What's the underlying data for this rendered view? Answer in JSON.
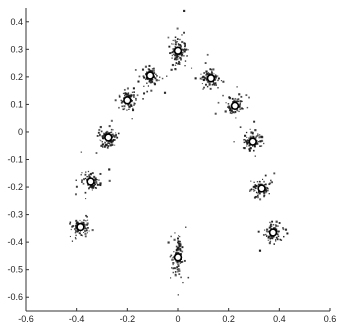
{
  "chart_data": {
    "type": "scatter",
    "title": "",
    "xlabel": "",
    "ylabel": "",
    "xlim": [
      -0.6,
      0.6
    ],
    "ylim": [
      -0.65,
      0.45
    ],
    "grid": false,
    "x_ticks": [
      "-0.6",
      "-0.4",
      "-0.2",
      "0",
      "0.2",
      "0.4",
      "0.6"
    ],
    "x_tick_values": [
      -0.6,
      -0.4,
      -0.2,
      0,
      0.2,
      0.4,
      0.6
    ],
    "y_ticks": [
      "0.4",
      "0.3",
      "0.2",
      "0.1",
      "0",
      "-0.1",
      "-0.2",
      "-0.3",
      "-0.4",
      "-0.5",
      "-0.6"
    ],
    "y_tick_values": [
      0.4,
      0.3,
      0.2,
      0.1,
      0,
      -0.1,
      -0.2,
      -0.3,
      -0.4,
      -0.5,
      -0.6
    ],
    "series": [
      {
        "marker": "white-circle",
        "points": [
          [
            0.0,
            0.295
          ],
          [
            0.13,
            0.195
          ],
          [
            0.225,
            0.095
          ],
          [
            0.295,
            -0.035
          ],
          [
            0.33,
            -0.205
          ],
          [
            0.375,
            -0.365
          ],
          [
            -0.11,
            0.205
          ],
          [
            -0.2,
            0.115
          ],
          [
            -0.275,
            -0.02
          ],
          [
            -0.345,
            -0.18
          ],
          [
            -0.385,
            -0.345
          ],
          [
            0.0,
            -0.455
          ]
        ]
      },
      {
        "marker": "dark-scatter-cloud",
        "cluster_spread": 0.03
      }
    ]
  }
}
